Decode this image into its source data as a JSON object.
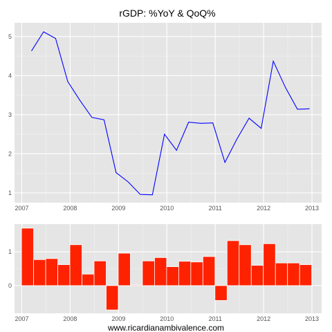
{
  "title": "rGDP: %YoY & QoQ%",
  "footer": "www.ricardianambivalence.com",
  "colors": {
    "panel_bg": "#e5e5e5",
    "grid_major": "#ffffff",
    "grid_minor": "#f2f2f2",
    "line": "#0000ff",
    "bar": "#ff2200"
  },
  "chart_data": [
    {
      "type": "line",
      "x": [
        2007.2,
        2007.45,
        2007.7,
        2007.95,
        2008.2,
        2008.45,
        2008.7,
        2008.95,
        2009.2,
        2009.45,
        2009.7,
        2009.95,
        2010.2,
        2010.45,
        2010.7,
        2010.95,
        2011.2,
        2011.45,
        2011.7,
        2011.95,
        2012.2,
        2012.45,
        2012.7,
        2012.95
      ],
      "y": [
        4.63,
        5.12,
        4.95,
        3.85,
        3.37,
        2.93,
        2.87,
        1.52,
        1.28,
        0.96,
        0.95,
        2.5,
        2.09,
        2.81,
        2.78,
        2.79,
        1.78,
        2.38,
        2.91,
        2.65,
        4.37,
        3.7,
        3.14,
        3.15
      ],
      "xlim": [
        2006.85,
        2013.2
      ],
      "ylim": [
        0.75,
        5.35
      ],
      "xticks": [
        "2007",
        "2008",
        "2009",
        "2010",
        "2011",
        "2012",
        "2013"
      ],
      "yticks": [
        "1",
        "2",
        "3",
        "4",
        "5"
      ],
      "grid": true
    },
    {
      "type": "bar",
      "x": [
        2007.12,
        2007.37,
        2007.62,
        2007.87,
        2008.12,
        2008.37,
        2008.62,
        2008.87,
        2009.12,
        2009.37,
        2009.62,
        2009.87,
        2010.12,
        2010.37,
        2010.62,
        2010.87,
        2011.12,
        2011.37,
        2011.62,
        2011.87,
        2012.12,
        2012.37,
        2012.62,
        2012.87
      ],
      "values": [
        1.7,
        0.77,
        0.8,
        0.62,
        1.21,
        0.34,
        0.73,
        -0.72,
        0.96,
        0.02,
        0.73,
        0.83,
        0.56,
        0.72,
        0.7,
        0.86,
        -0.44,
        1.33,
        1.21,
        0.6,
        1.24,
        0.67,
        0.67,
        0.62
      ],
      "xlim": [
        2006.85,
        2013.2
      ],
      "ylim": [
        -0.82,
        1.82
      ],
      "xticks": [
        "2007",
        "2008",
        "2009",
        "2010",
        "2011",
        "2012",
        "2013"
      ],
      "yticks": [
        "0",
        "1"
      ],
      "grid": true
    }
  ]
}
